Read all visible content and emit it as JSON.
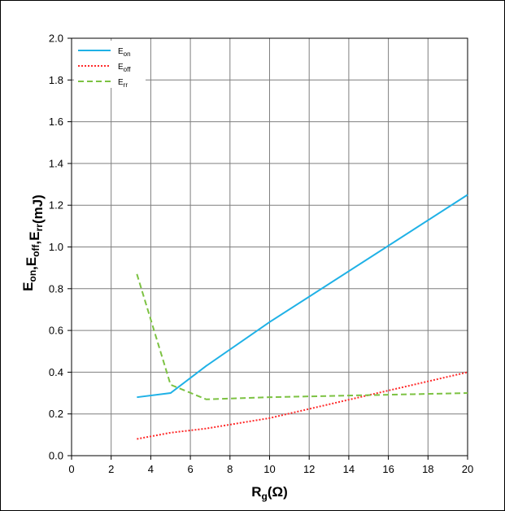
{
  "chart_data": {
    "type": "line",
    "title": "",
    "xlabel": {
      "main": "R",
      "sub": "g",
      "rest": "(Ω)"
    },
    "ylabel": [
      {
        "main": "E",
        "sub": "on"
      },
      {
        "main": ",E",
        "sub": "off"
      },
      {
        "main": ",E",
        "sub": "rr"
      },
      {
        "main": "(mJ)",
        "sub": ""
      }
    ],
    "xlim": [
      0,
      20
    ],
    "ylim": [
      0,
      2.0
    ],
    "x_ticks": [
      "0",
      "2",
      "4",
      "6",
      "8",
      "10",
      "12",
      "14",
      "16",
      "18",
      "20"
    ],
    "y_ticks": [
      "0.0",
      "0.2",
      "0.4",
      "0.6",
      "0.8",
      "1.0",
      "1.2",
      "1.4",
      "1.6",
      "1.8",
      "2.0"
    ],
    "grid": true,
    "legend_position": "top-left",
    "series": [
      {
        "name": {
          "main": "E",
          "sub": "on"
        },
        "color": "#1fb1e6",
        "style": "solid",
        "x": [
          3.3,
          5.0,
          6.8,
          10.0,
          20.0
        ],
        "y": [
          0.28,
          0.3,
          0.43,
          0.64,
          1.25
        ]
      },
      {
        "name": {
          "main": "E",
          "sub": "off"
        },
        "color": "#ff2a2a",
        "style": "dotted",
        "x": [
          3.3,
          5.0,
          6.8,
          10.0,
          20.0
        ],
        "y": [
          0.08,
          0.11,
          0.13,
          0.18,
          0.4
        ]
      },
      {
        "name": {
          "main": "E",
          "sub": "rr"
        },
        "color": "#7cc242",
        "style": "dashed",
        "x": [
          3.3,
          5.0,
          6.8,
          10.0,
          20.0
        ],
        "y": [
          0.87,
          0.34,
          0.27,
          0.28,
          0.3
        ]
      }
    ]
  }
}
